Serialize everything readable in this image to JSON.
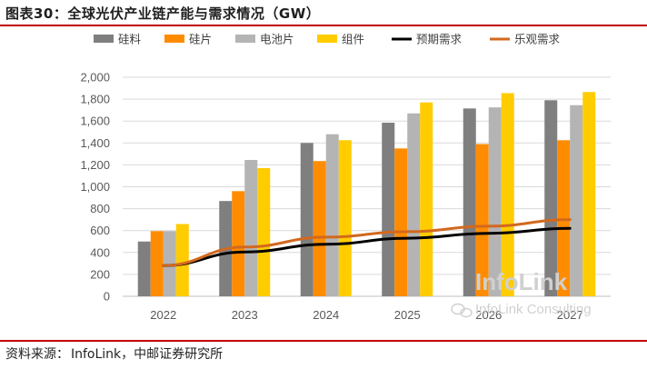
{
  "figure": {
    "title": "图表30：全球光伏产业链产能与需求情况（GW）",
    "source_label": "资料来源：",
    "source_text": "InfoLink，中邮证券研究所",
    "watermark_main": "InfoLink",
    "watermark_sub": "InfoLink Consulting"
  },
  "colors": {
    "accent": "#c00000",
    "gridline": "#d9d9d9",
    "axis_text": "#595959"
  },
  "chart_data": {
    "type": "bar",
    "title": "全球光伏产业链产能与需求情况（GW）",
    "xlabel": "",
    "ylabel": "",
    "ylim": [
      0,
      2000
    ],
    "yticks": [
      0,
      200,
      400,
      600,
      800,
      1000,
      1200,
      1400,
      1600,
      1800,
      2000
    ],
    "ytick_labels": [
      "0",
      "200",
      "400",
      "600",
      "800",
      "1,000",
      "1,200",
      "1,400",
      "1,600",
      "1,800",
      "2,000"
    ],
    "grid": true,
    "legend_position": "top",
    "categories": [
      "2022",
      "2023",
      "2024",
      "2025",
      "2026",
      "2027"
    ],
    "series": [
      {
        "name": "硅料",
        "kind": "bar",
        "color": "#7f7f7f",
        "values": [
          500,
          870,
          1400,
          1585,
          1715,
          1790
        ]
      },
      {
        "name": "硅片",
        "kind": "bar",
        "color": "#ff8c00",
        "values": [
          595,
          960,
          1235,
          1350,
          1390,
          1425
        ]
      },
      {
        "name": "电池片",
        "kind": "bar",
        "color": "#b4b4b4",
        "values": [
          595,
          1245,
          1480,
          1670,
          1725,
          1745
        ]
      },
      {
        "name": "组件",
        "kind": "bar",
        "color": "#ffcc00",
        "values": [
          660,
          1170,
          1425,
          1770,
          1855,
          1865
        ]
      },
      {
        "name": "预期需求",
        "kind": "line",
        "color": "#000000",
        "values": [
          280,
          405,
          475,
          530,
          575,
          620
        ]
      },
      {
        "name": "乐观需求",
        "kind": "line",
        "color": "#d2691e",
        "values": [
          280,
          450,
          540,
          590,
          640,
          700
        ]
      }
    ]
  }
}
